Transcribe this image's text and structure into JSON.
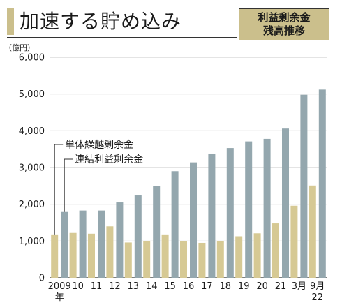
{
  "header": {
    "title": "加速する貯め込み",
    "badge_line1": "利益剰余金",
    "badge_line2": "残高推移"
  },
  "chart_data": {
    "type": "bar",
    "unit_label": "（億円）",
    "categories": [
      "2009",
      "10",
      "11",
      "12",
      "13",
      "14",
      "15",
      "16",
      "17",
      "18",
      "19",
      "20",
      "21",
      "3月",
      "9月"
    ],
    "category_sublabels": [
      "年",
      "",
      "",
      "",
      "",
      "",
      "",
      "",
      "",
      "",
      "",
      "",
      "",
      "",
      "22"
    ],
    "series": [
      {
        "name": "単体繰越剰余金",
        "color": "#d6c994",
        "values": [
          1180,
          1220,
          1200,
          1400,
          960,
          1000,
          1180,
          990,
          950,
          990,
          1130,
          1210,
          1480,
          1960,
          2510
        ]
      },
      {
        "name": "連結利益剰余金",
        "color": "#94a7ae",
        "values": [
          1790,
          1830,
          1830,
          2050,
          2240,
          2490,
          2900,
          3140,
          3380,
          3530,
          3710,
          3780,
          4060,
          4980,
          5120
        ]
      }
    ],
    "yticks": [
      "0",
      "1,000",
      "2,000",
      "3,000",
      "4,000",
      "5,000",
      "6,000"
    ],
    "ylim": [
      0,
      6000
    ],
    "grid": true
  }
}
